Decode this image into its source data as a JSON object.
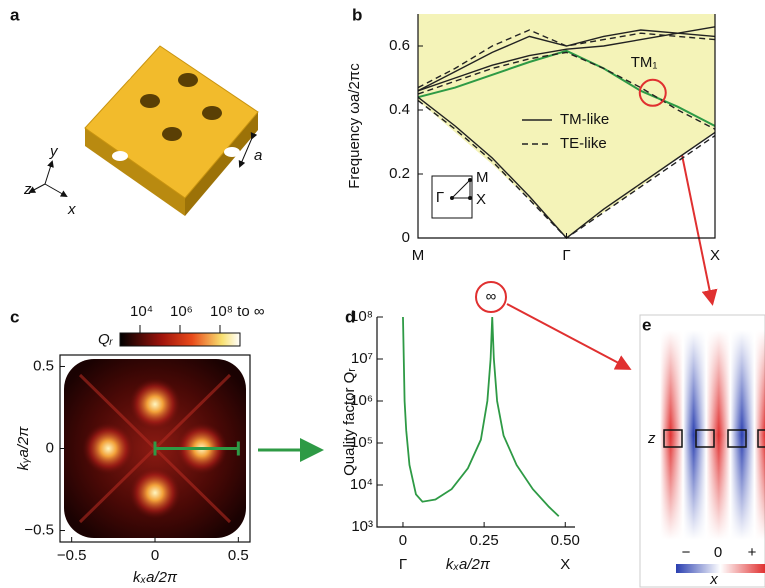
{
  "panel_labels": [
    "a",
    "b",
    "c",
    "d",
    "e"
  ],
  "panel_a": {
    "axes": [
      "y",
      "z",
      "x"
    ],
    "lattice_constant": "a"
  },
  "chart_data": [
    {
      "type": "bands",
      "ylabel": "Frequency ωa/2πc",
      "x": [
        0,
        0.25,
        0.5,
        0.75,
        1,
        1.25,
        1.5,
        1.75,
        2
      ],
      "xlim": [
        0,
        2
      ],
      "xticks": [
        {
          "value": 0,
          "label": "M"
        },
        {
          "value": 1,
          "label": "Γ"
        },
        {
          "value": 2,
          "label": "X"
        }
      ],
      "ylim": [
        0,
        0.7
      ],
      "yticks": [
        0,
        0.2,
        0.4,
        0.6
      ],
      "light_cone": {
        "color": "#f4f3b8",
        "values": [
          0.43,
          0.33,
          0.23,
          0.12,
          0,
          0.08,
          0.16,
          0.25,
          0.33
        ]
      },
      "series": [
        {
          "name": "TM₁",
          "color": "#2e9a45",
          "dash": "solid",
          "label_on_line": true,
          "bands": [
            [
              0.44,
              0.47,
              0.51,
              0.55,
              0.585,
              0.53,
              0.46,
              0.41,
              0.35
            ]
          ]
        },
        {
          "name": "TM-like",
          "color": "#222222",
          "dash": "solid",
          "bands": [
            [
              0.44,
              0.35,
              0.25,
              0.13,
              0,
              0.09,
              0.17,
              0.25,
              0.33
            ],
            [
              0.46,
              0.52,
              0.58,
              0.63,
              0.6,
              0.63,
              0.65,
              0.64,
              0.63
            ],
            [
              0.46,
              0.5,
              0.54,
              0.57,
              0.59,
              0.6,
              0.62,
              0.64,
              0.66
            ]
          ]
        },
        {
          "name": "TE-like",
          "color": "#222222",
          "dash": "dashed",
          "bands": [
            [
              0.43,
              0.34,
              0.24,
              0.12,
              0,
              0.08,
              0.16,
              0.24,
              0.32
            ],
            [
              0.45,
              0.49,
              0.53,
              0.56,
              0.58,
              0.53,
              0.47,
              0.4,
              0.34
            ],
            [
              0.47,
              0.53,
              0.6,
              0.65,
              0.6,
              0.62,
              0.64,
              0.63,
              0.62
            ]
          ]
        }
      ],
      "legend": "right",
      "inset": {
        "labels": [
          "Γ",
          "M",
          "X"
        ]
      }
    },
    {
      "type": "heatmap",
      "xlabel": "kₓa/2π",
      "ylabel": "kᵧa/2π",
      "xlim": [
        -0.57,
        0.57
      ],
      "ylim": [
        -0.57,
        0.57
      ],
      "xticks": [
        {
          "value": -0.5,
          "label": "−0.5"
        },
        0,
        0.5
      ],
      "yticks": [
        {
          "value": -0.5,
          "label": "−0.5"
        },
        0,
        0.5
      ],
      "colorbar": {
        "title": "Qᵣ",
        "lim": [
          3,
          9
        ],
        "ticks": [
          {
            "value": 4,
            "label": "10⁴"
          },
          {
            "value": 6,
            "label": "10⁶"
          },
          {
            "value": 8,
            "label": "10⁸ to ∞"
          }
        ]
      }
    },
    {
      "type": "line",
      "yscale": "log",
      "ylabel": "Quality factor Qᵣ",
      "xlabel": "kₓa/2π",
      "color": "#2e9a45",
      "x": [
        0,
        0.005,
        0.01,
        0.02,
        0.04,
        0.06,
        0.1,
        0.15,
        0.2,
        0.24,
        0.26,
        0.27,
        0.275,
        0.28,
        0.29,
        0.31,
        0.35,
        0.4,
        0.45,
        0.48
      ],
      "values": [
        100000000,
        1000000,
        200000,
        30000,
        6000,
        4000,
        4500,
        8000,
        25000,
        120000,
        1000000,
        10000000,
        100000000,
        10000000,
        1000000,
        150000,
        30000,
        8000,
        3000,
        1800
      ],
      "xlim": [
        -0.08,
        0.53
      ],
      "xticks": [
        0,
        0.25,
        {
          "value": 0.5,
          "label": "0.50"
        }
      ],
      "xtick_sublabels": [
        {
          "value": 0,
          "label": "Γ"
        },
        {
          "value": 0.5,
          "label": "X"
        }
      ],
      "ylim": [
        1000,
        100000000
      ],
      "yticks": [
        {
          "value": 1000,
          "label": "10³"
        },
        {
          "value": 10000,
          "label": "10⁴"
        },
        {
          "value": 100000,
          "label": "10⁵"
        },
        {
          "value": 1000000,
          "label": "10⁶"
        },
        {
          "value": 10000000,
          "label": "10⁷"
        },
        {
          "value": 100000000,
          "label": "10⁸"
        }
      ],
      "annotation": "∞"
    }
  ],
  "panel_e": {
    "axis_labels": [
      "z",
      "x"
    ],
    "colorbar_labels": [
      "−",
      "0",
      "+"
    ]
  }
}
